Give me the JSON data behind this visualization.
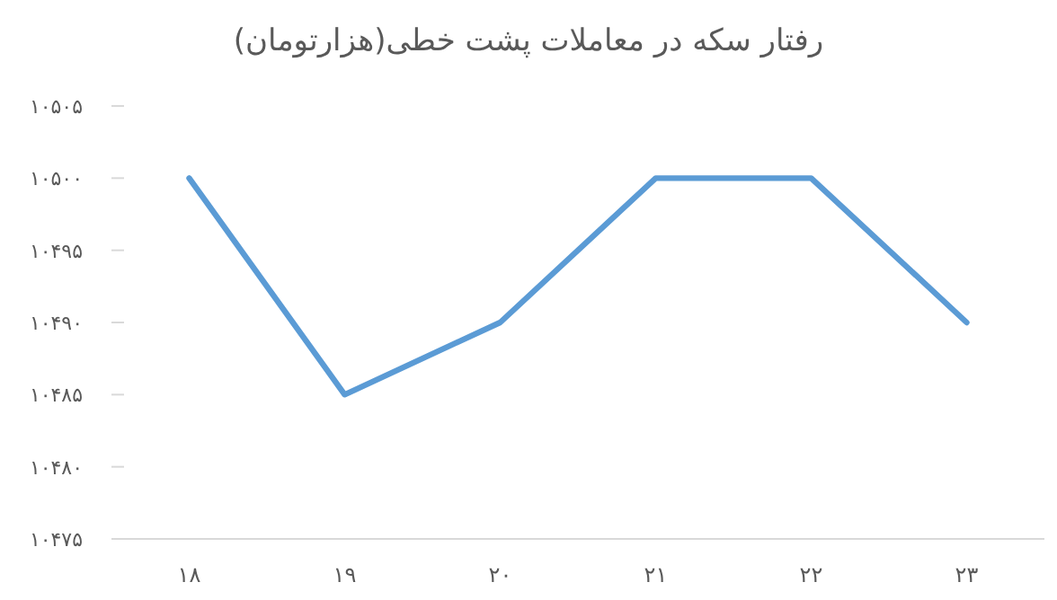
{
  "chart_data": {
    "type": "line",
    "title": "رفتار سکه در معاملات پشت خطی(هزارتومان)",
    "categories": [
      "۱۸",
      "۱۹",
      "۲۰",
      "۲۱",
      "۲۲",
      "۲۳"
    ],
    "series": [
      {
        "color": "#5b9bd5",
        "values": [
          10500,
          10485,
          10490,
          10500,
          10500,
          10490
        ]
      }
    ],
    "ylim": [
      10475,
      10505
    ],
    "yticks": [
      {
        "value": 10475,
        "label": "۱۰۴۷۵"
      },
      {
        "value": 10480,
        "label": "۱۰۴۸۰"
      },
      {
        "value": 10485,
        "label": "۱۰۴۸۵"
      },
      {
        "value": 10490,
        "label": "۱۰۴۹۰"
      },
      {
        "value": 10495,
        "label": "۱۰۴۹۵"
      },
      {
        "value": 10500,
        "label": "۱۰۵۰۰"
      },
      {
        "value": 10505,
        "label": "۱۰۵۰۵"
      }
    ],
    "marker": "none",
    "line_style": "solid"
  }
}
